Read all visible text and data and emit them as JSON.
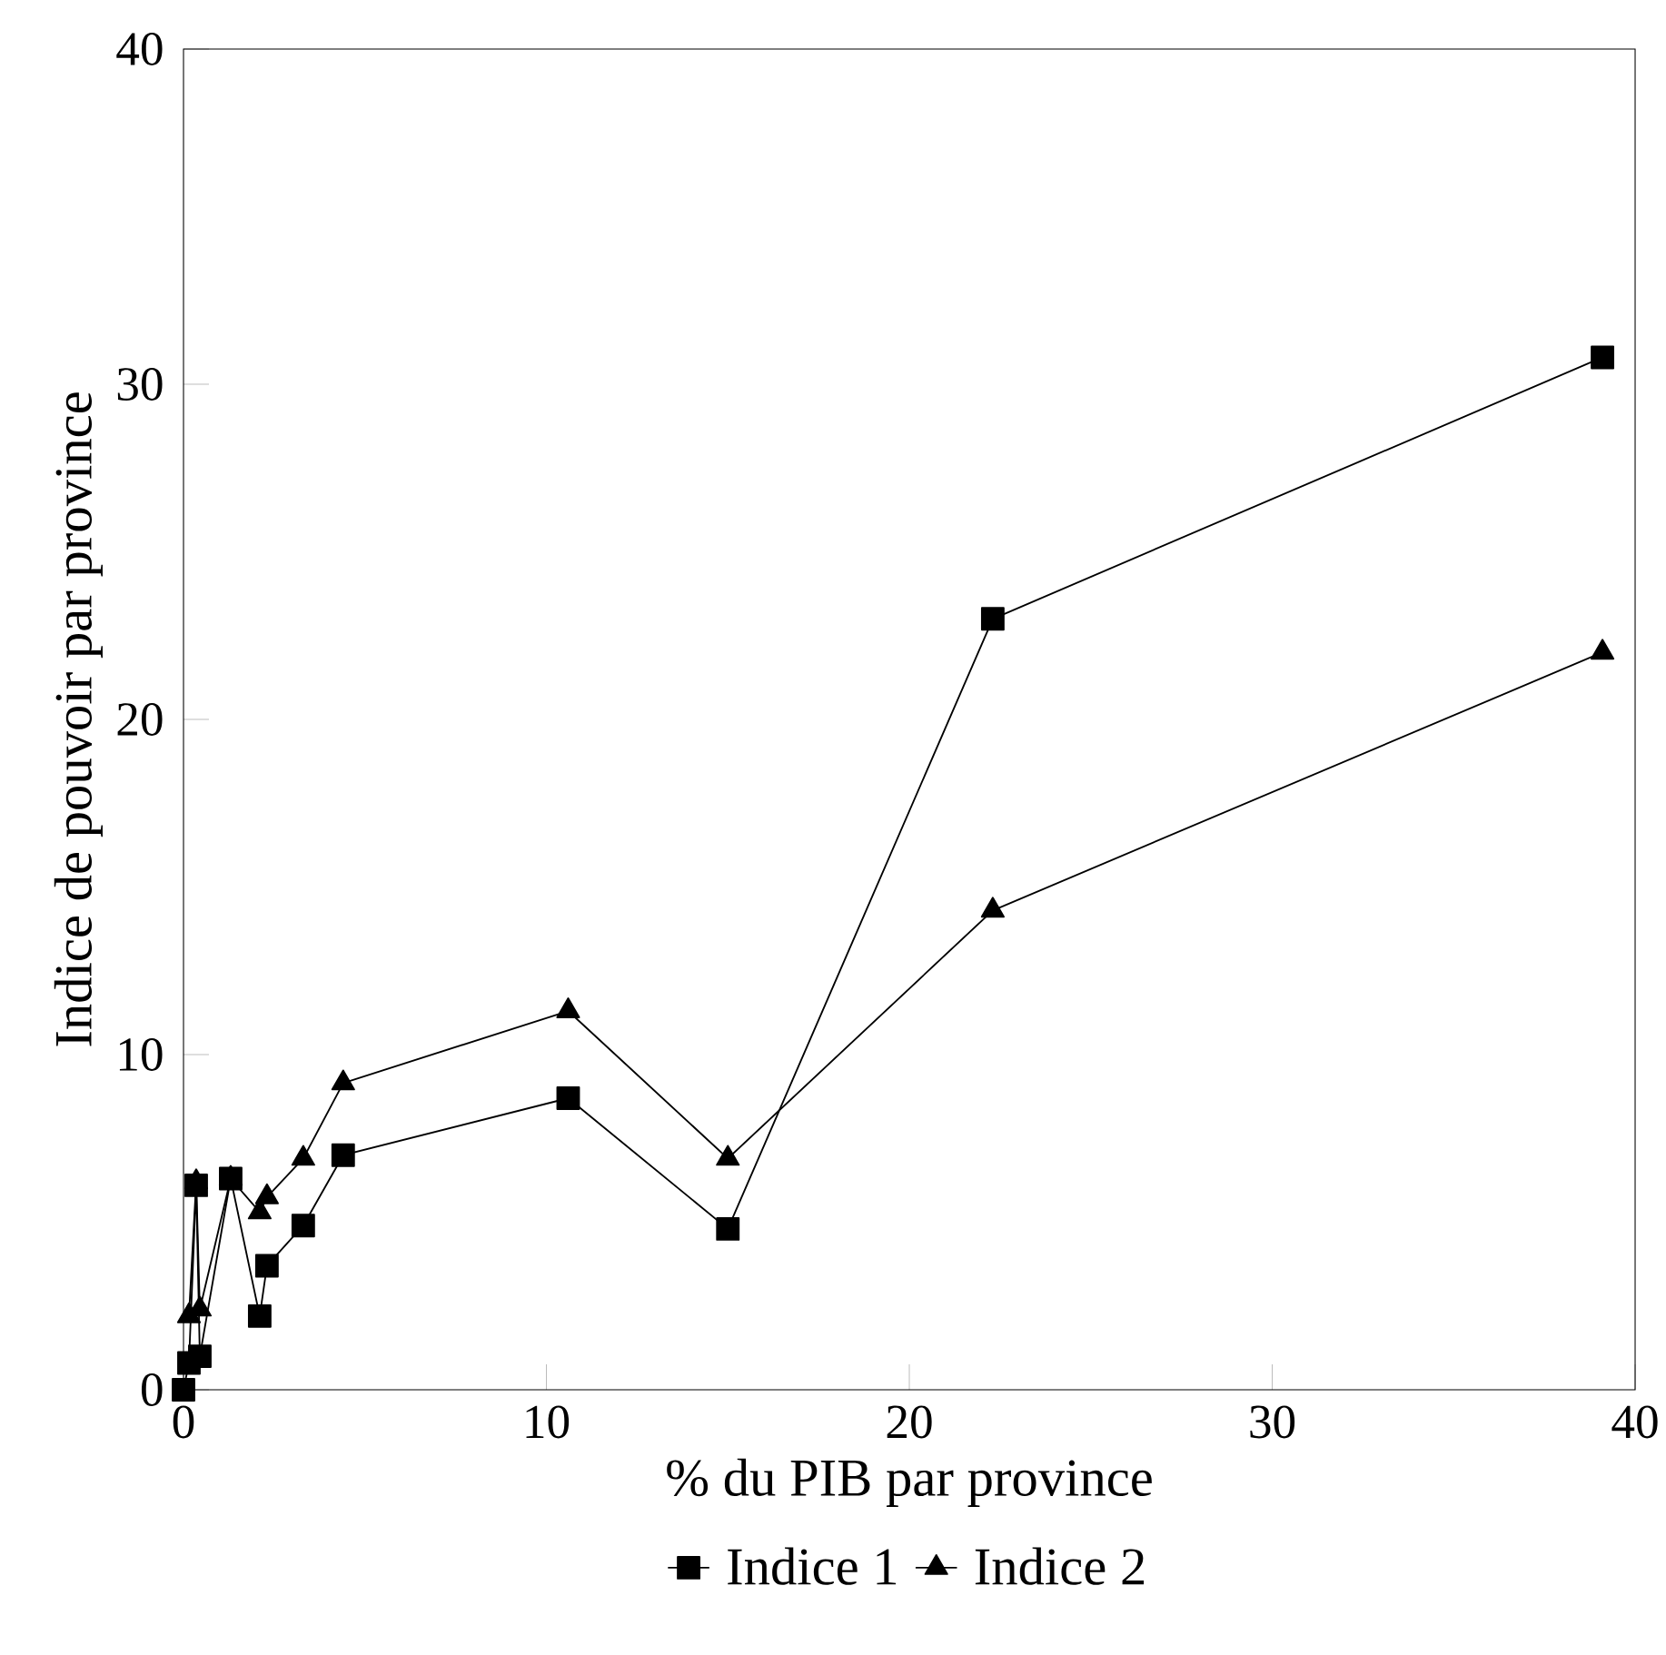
{
  "chart_data": {
    "type": "line",
    "xlabel": "% du PIB par province",
    "ylabel": "Indice de pouvoir par province",
    "x": [
      0,
      0.15,
      0.35,
      0.45,
      1.3,
      2.1,
      2.3,
      3.3,
      4.4,
      10.6,
      15.0,
      22.3,
      39.1
    ],
    "series": [
      {
        "name": "Indice 1",
        "color": "#000000",
        "marker": "square",
        "values": [
          0,
          0.8,
          6.1,
          1.0,
          6.3,
          2.2,
          3.7,
          4.9,
          7.0,
          8.7,
          4.8,
          23.0,
          30.8
        ]
      },
      {
        "name": "Indice 2",
        "color": "#000000",
        "marker": "triangle",
        "values": [
          null,
          2.2,
          6.2,
          2.4,
          6.3,
          5.3,
          5.75,
          6.9,
          9.15,
          11.3,
          6.9,
          14.3,
          22.0
        ]
      }
    ],
    "xlim": [
      0,
      40
    ],
    "ylim": [
      0,
      40
    ],
    "xticks": [
      0,
      10,
      20,
      30,
      40
    ],
    "yticks": [
      0,
      10,
      20,
      30,
      40
    ],
    "grid": false,
    "legend": "bottom",
    "line_style": "solid"
  }
}
